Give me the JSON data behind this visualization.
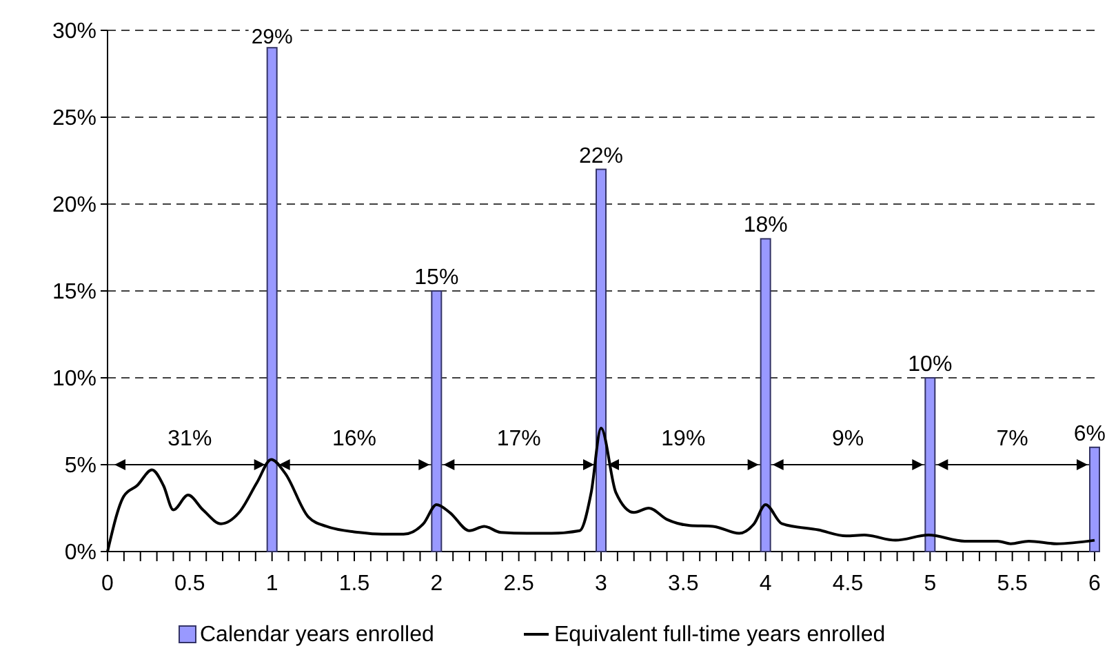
{
  "chart_data": {
    "type": "bar",
    "xlim": [
      0,
      6
    ],
    "ylim": [
      0,
      30
    ],
    "xticks": [
      0,
      {
        "value": 0.1,
        "label": null
      },
      {
        "value": 0.2,
        "label": null
      },
      {
        "value": 0.3,
        "label": null
      },
      {
        "value": 0.4,
        "label": null
      },
      0.5,
      {
        "value": 0.6,
        "label": null
      },
      {
        "value": 0.7,
        "label": null
      },
      {
        "value": 0.8,
        "label": null
      },
      {
        "value": 0.9,
        "label": null
      },
      1,
      {
        "value": 1.1,
        "label": null
      },
      {
        "value": 1.2,
        "label": null
      },
      {
        "value": 1.3,
        "label": null
      },
      {
        "value": 1.4,
        "label": null
      },
      1.5,
      {
        "value": 1.6,
        "label": null
      },
      {
        "value": 1.7,
        "label": null
      },
      {
        "value": 1.8,
        "label": null
      },
      {
        "value": 1.9,
        "label": null
      },
      2,
      {
        "value": 2.1,
        "label": null
      },
      {
        "value": 2.2,
        "label": null
      },
      {
        "value": 2.3,
        "label": null
      },
      {
        "value": 2.4,
        "label": null
      },
      2.5,
      {
        "value": 2.6,
        "label": null
      },
      {
        "value": 2.7,
        "label": null
      },
      {
        "value": 2.8,
        "label": null
      },
      {
        "value": 2.9,
        "label": null
      },
      3,
      {
        "value": 3.1,
        "label": null
      },
      {
        "value": 3.2,
        "label": null
      },
      {
        "value": 3.3,
        "label": null
      },
      {
        "value": 3.4,
        "label": null
      },
      3.5,
      {
        "value": 3.6,
        "label": null
      },
      {
        "value": 3.7,
        "label": null
      },
      {
        "value": 3.8,
        "label": null
      },
      {
        "value": 3.9,
        "label": null
      },
      4,
      {
        "value": 4.1,
        "label": null
      },
      {
        "value": 4.2,
        "label": null
      },
      {
        "value": 4.3,
        "label": null
      },
      {
        "value": 4.4,
        "label": null
      },
      4.5,
      {
        "value": 4.6,
        "label": null
      },
      {
        "value": 4.7,
        "label": null
      },
      {
        "value": 4.8,
        "label": null
      },
      {
        "value": 4.9,
        "label": null
      },
      5,
      {
        "value": 5.1,
        "label": null
      },
      {
        "value": 5.2,
        "label": null
      },
      {
        "value": 5.3,
        "label": null
      },
      {
        "value": 5.4,
        "label": null
      },
      5.5,
      {
        "value": 5.6,
        "label": null
      },
      {
        "value": 5.7,
        "label": null
      },
      {
        "value": 5.8,
        "label": null
      },
      {
        "value": 5.9,
        "label": null
      },
      6
    ],
    "yticks": [
      {
        "value": 0,
        "label": "0%"
      },
      {
        "value": 5,
        "label": "5%"
      },
      {
        "value": 10,
        "label": "10%"
      },
      {
        "value": 15,
        "label": "15%"
      },
      {
        "value": 20,
        "label": "20%"
      },
      {
        "value": 25,
        "label": "25%"
      },
      {
        "value": 30,
        "label": "30%"
      }
    ],
    "grid": "y",
    "legend": "bottom",
    "series": [
      {
        "name": "Calendar years enrolled",
        "color": "#9999ff",
        "x": [
          1,
          2,
          3,
          4,
          5,
          6
        ],
        "values": [
          29,
          15,
          22,
          18,
          10,
          6
        ],
        "value_labels": [
          "29%",
          "15%",
          "22%",
          "18%",
          "10%",
          "6%"
        ]
      },
      {
        "name": "Equivalent full-time years enrolled",
        "type": "line",
        "color": "#000000",
        "marker": "none",
        "line_style": "solid",
        "x": [
          0,
          0.1,
          0.18,
          0.27,
          0.34,
          0.4,
          0.49,
          0.58,
          0.69,
          0.8,
          0.91,
          0.995,
          1.08,
          1.22,
          1.33,
          1.53,
          1.67,
          1.8,
          1.92,
          2,
          2.08,
          2.2,
          2.29,
          2.39,
          2.55,
          2.7,
          2.87,
          2.94,
          3,
          3.09,
          3.2,
          3.29,
          3.4,
          3.54,
          3.68,
          3.84,
          3.93,
          4,
          4.1,
          4.32,
          4.49,
          4.6,
          4.79,
          4.99,
          5.21,
          5.41,
          5.49,
          5.6,
          5.77,
          6
        ],
        "values": [
          0,
          3.2,
          3.8,
          4.7,
          3.8,
          2.4,
          3.25,
          2.4,
          1.6,
          2.25,
          4,
          5.3,
          4.5,
          2,
          1.45,
          1.1,
          1,
          1,
          1.6,
          2.7,
          2.25,
          1.2,
          1.45,
          1.1,
          1.05,
          1.05,
          1.2,
          3.4,
          7.1,
          3.4,
          2.25,
          2.5,
          1.85,
          1.5,
          1.45,
          1.05,
          1.6,
          2.7,
          1.6,
          1.25,
          0.9,
          0.95,
          0.65,
          0.95,
          0.6,
          0.6,
          0.45,
          0.6,
          0.45,
          0.65
        ]
      }
    ],
    "annotations": [
      "31%",
      "16%",
      "17%",
      "19%",
      "9%",
      "7%"
    ]
  }
}
